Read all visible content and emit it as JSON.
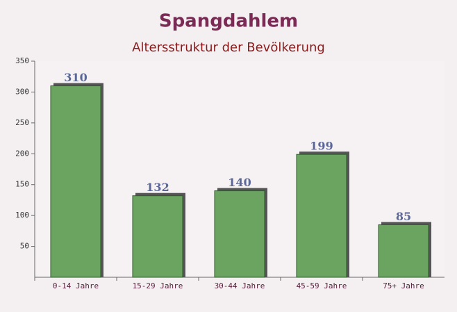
{
  "chart_data": {
    "type": "bar",
    "title": "Spangdahlem",
    "subtitle": "Altersstruktur der Bevölkerung",
    "categories": [
      "0-14 Jahre",
      "15-29 Jahre",
      "30-44 Jahre",
      "45-59 Jahre",
      "75+ Jahre"
    ],
    "values": [
      310,
      132,
      140,
      199,
      85
    ],
    "color": "#6aa460",
    "ylim": [
      0,
      350
    ],
    "yticks": [
      50,
      100,
      150,
      200,
      250,
      300,
      350
    ]
  }
}
